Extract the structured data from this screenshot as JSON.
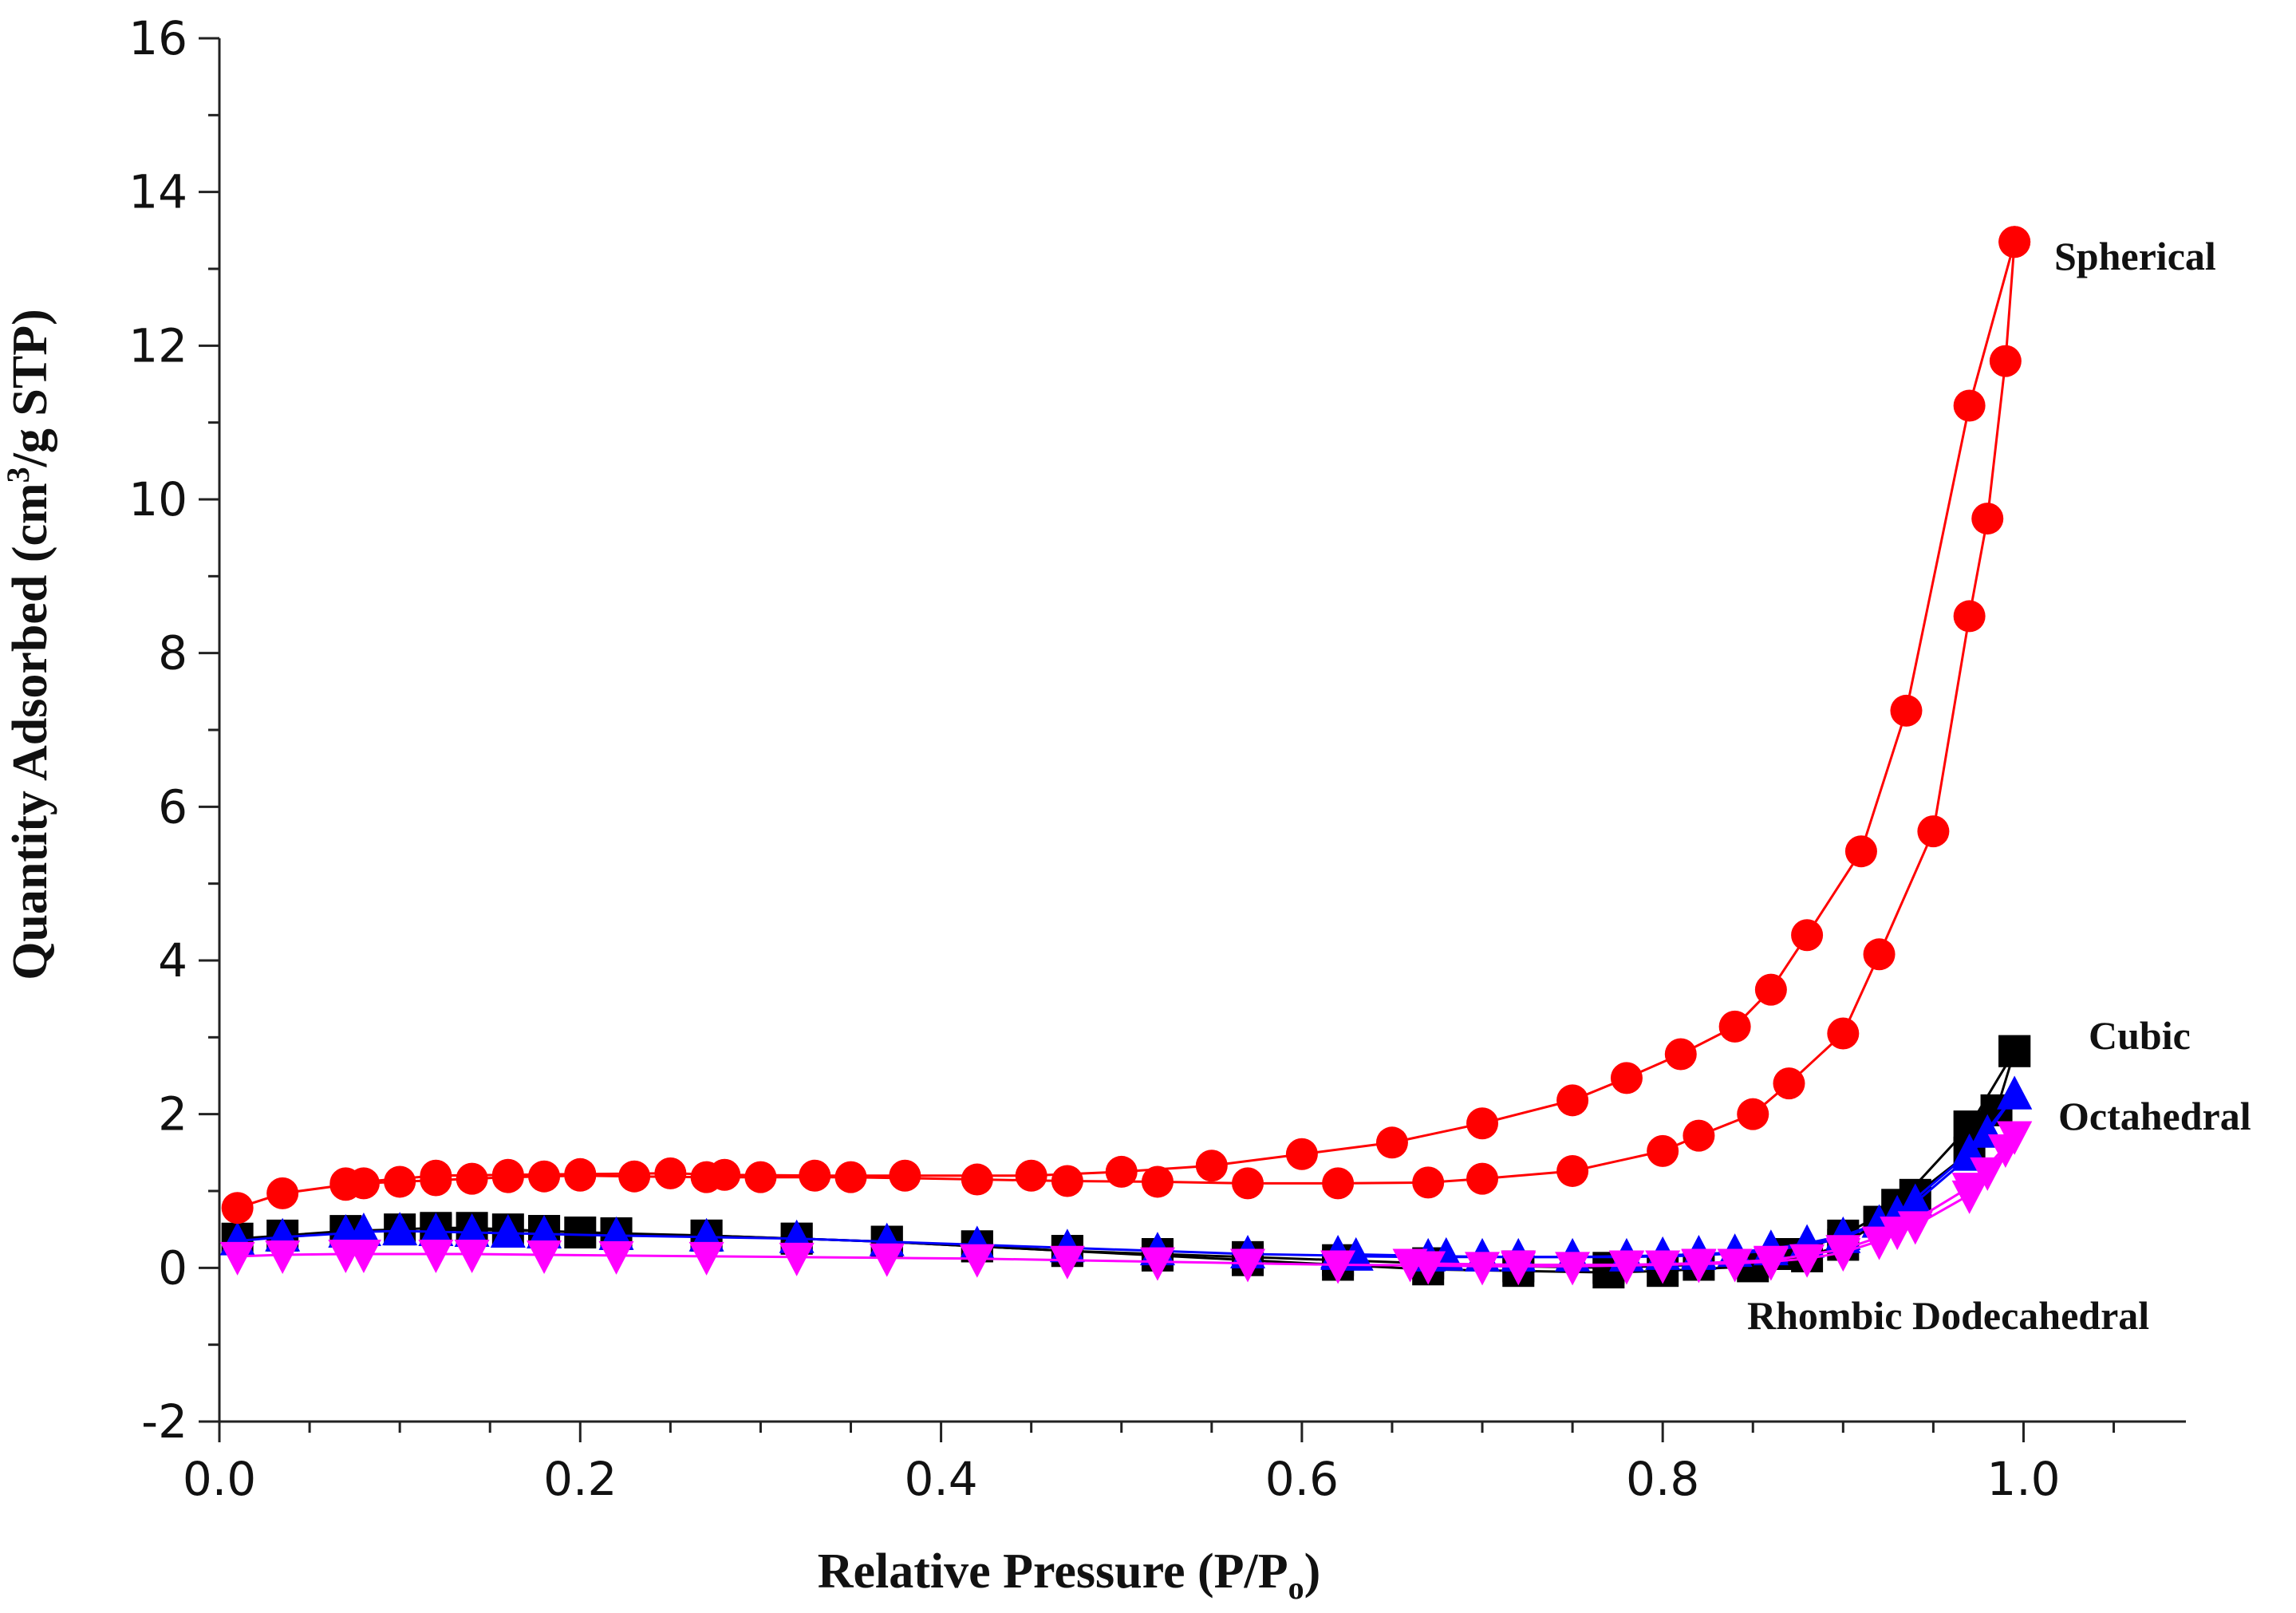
{
  "chart_data": {
    "type": "scatter",
    "title": "",
    "xlabel": "Relative Pressure (P/P",
    "xlabel_sub": "o",
    "xlabel_close": ")",
    "ylabel_prefix": "Quantity Adsorbed (cm",
    "ylabel_sup": "3",
    "ylabel_suffix": "/g  STP)",
    "xlim": [
      0.0,
      1.09
    ],
    "ylim": [
      -2,
      16
    ],
    "x_ticks": [
      "0.0",
      "0.2",
      "0.4",
      "0.6",
      "0.8",
      "1.0"
    ],
    "y_ticks": [
      "-2",
      "0",
      "2",
      "4",
      "6",
      "8",
      "10",
      "12",
      "14",
      "16"
    ],
    "legend": "none",
    "series": [
      {
        "name": "Spherical",
        "color": "#ff0000",
        "marker": "circle",
        "adsorption": [
          [
            0.01,
            0.78
          ],
          [
            0.035,
            0.97
          ],
          [
            0.07,
            1.08
          ],
          [
            0.08,
            1.1
          ],
          [
            0.1,
            1.12
          ],
          [
            0.12,
            1.14
          ],
          [
            0.14,
            1.16
          ],
          [
            0.16,
            1.18
          ],
          [
            0.18,
            1.19
          ],
          [
            0.2,
            1.2
          ],
          [
            0.23,
            1.19
          ],
          [
            0.27,
            1.18
          ],
          [
            0.3,
            1.18
          ],
          [
            0.35,
            1.18
          ],
          [
            0.42,
            1.15
          ],
          [
            0.47,
            1.13
          ],
          [
            0.52,
            1.12
          ],
          [
            0.57,
            1.1
          ],
          [
            0.62,
            1.1
          ],
          [
            0.67,
            1.11
          ],
          [
            0.7,
            1.16
          ],
          [
            0.75,
            1.26
          ],
          [
            0.8,
            1.52
          ],
          [
            0.82,
            1.72
          ],
          [
            0.85,
            2.0
          ],
          [
            0.87,
            2.4
          ],
          [
            0.9,
            3.05
          ],
          [
            0.92,
            4.08
          ],
          [
            0.95,
            5.68
          ],
          [
            0.97,
            8.48
          ],
          [
            0.98,
            9.75
          ],
          [
            0.99,
            11.8
          ],
          [
            0.995,
            13.35
          ]
        ],
        "desorption": [
          [
            0.995,
            13.35
          ],
          [
            0.97,
            11.22
          ],
          [
            0.935,
            7.25
          ],
          [
            0.91,
            5.42
          ],
          [
            0.88,
            4.33
          ],
          [
            0.86,
            3.62
          ],
          [
            0.84,
            3.14
          ],
          [
            0.81,
            2.78
          ],
          [
            0.78,
            2.47
          ],
          [
            0.75,
            2.18
          ],
          [
            0.7,
            1.88
          ],
          [
            0.65,
            1.63
          ],
          [
            0.6,
            1.48
          ],
          [
            0.55,
            1.33
          ],
          [
            0.5,
            1.25
          ],
          [
            0.45,
            1.2
          ],
          [
            0.38,
            1.2
          ],
          [
            0.33,
            1.2
          ],
          [
            0.28,
            1.21
          ],
          [
            0.25,
            1.23
          ],
          [
            0.2,
            1.22
          ],
          [
            0.16,
            1.21
          ],
          [
            0.12,
            1.2
          ],
          [
            0.07,
            1.1
          ]
        ],
        "label": "Spherical"
      },
      {
        "name": "Cubic",
        "color": "#000000",
        "marker": "square",
        "adsorption": [
          [
            0.01,
            0.38
          ],
          [
            0.035,
            0.42
          ],
          [
            0.07,
            0.48
          ],
          [
            0.1,
            0.5
          ],
          [
            0.12,
            0.52
          ],
          [
            0.14,
            0.52
          ],
          [
            0.16,
            0.5
          ],
          [
            0.18,
            0.48
          ],
          [
            0.2,
            0.46
          ],
          [
            0.22,
            0.44
          ],
          [
            0.27,
            0.42
          ],
          [
            0.32,
            0.38
          ],
          [
            0.37,
            0.34
          ],
          [
            0.42,
            0.28
          ],
          [
            0.47,
            0.22
          ],
          [
            0.52,
            0.16
          ],
          [
            0.57,
            0.1
          ],
          [
            0.62,
            0.04
          ],
          [
            0.67,
            -0.02
          ],
          [
            0.72,
            -0.04
          ],
          [
            0.77,
            -0.06
          ],
          [
            0.8,
            -0.04
          ],
          [
            0.85,
            0.02
          ],
          [
            0.88,
            0.15
          ],
          [
            0.9,
            0.3
          ],
          [
            0.92,
            0.6
          ],
          [
            0.94,
            0.95
          ],
          [
            0.97,
            1.5
          ],
          [
            0.985,
            2.05
          ],
          [
            0.995,
            2.82
          ]
        ],
        "desorption": [
          [
            0.995,
            2.82
          ],
          [
            0.97,
            1.84
          ],
          [
            0.93,
            0.82
          ],
          [
            0.9,
            0.42
          ],
          [
            0.87,
            0.18
          ],
          [
            0.82,
            0.04
          ],
          [
            0.77,
            0.0
          ],
          [
            0.72,
            0.02
          ],
          [
            0.67,
            0.06
          ],
          [
            0.62,
            0.1
          ],
          [
            0.57,
            0.14
          ],
          [
            0.52,
            0.18
          ],
          [
            0.47,
            0.22
          ],
          [
            0.42,
            0.28
          ],
          [
            0.37,
            0.34
          ],
          [
            0.32,
            0.38
          ],
          [
            0.27,
            0.42
          ],
          [
            0.22,
            0.45
          ],
          [
            0.18,
            0.48
          ],
          [
            0.12,
            0.5
          ]
        ],
        "label": "Cubic"
      },
      {
        "name": "Octahedral",
        "color": "#0000ff",
        "marker": "triangle-up",
        "adsorption": [
          [
            0.01,
            0.35
          ],
          [
            0.035,
            0.4
          ],
          [
            0.07,
            0.45
          ],
          [
            0.08,
            0.47
          ],
          [
            0.1,
            0.48
          ],
          [
            0.12,
            0.47
          ],
          [
            0.14,
            0.46
          ],
          [
            0.16,
            0.45
          ],
          [
            0.18,
            0.44
          ],
          [
            0.22,
            0.42
          ],
          [
            0.27,
            0.4
          ],
          [
            0.32,
            0.38
          ],
          [
            0.37,
            0.34
          ],
          [
            0.42,
            0.3
          ],
          [
            0.47,
            0.26
          ],
          [
            0.52,
            0.22
          ],
          [
            0.57,
            0.18
          ],
          [
            0.62,
            0.16
          ],
          [
            0.63,
            0.15
          ],
          [
            0.67,
            0.14
          ],
          [
            0.7,
            0.14
          ],
          [
            0.75,
            0.14
          ],
          [
            0.8,
            0.16
          ],
          [
            0.82,
            0.18
          ],
          [
            0.84,
            0.2
          ],
          [
            0.86,
            0.25
          ],
          [
            0.88,
            0.32
          ],
          [
            0.9,
            0.42
          ],
          [
            0.92,
            0.58
          ],
          [
            0.94,
            0.85
          ],
          [
            0.97,
            1.45
          ],
          [
            0.98,
            1.75
          ],
          [
            0.995,
            2.25
          ]
        ],
        "desorption": [
          [
            0.995,
            2.25
          ],
          [
            0.97,
            1.5
          ],
          [
            0.93,
            0.7
          ],
          [
            0.9,
            0.38
          ],
          [
            0.86,
            0.22
          ],
          [
            0.82,
            0.16
          ],
          [
            0.78,
            0.14
          ],
          [
            0.72,
            0.14
          ],
          [
            0.68,
            0.15
          ],
          [
            0.62,
            0.18
          ]
        ],
        "label": "Octahedral"
      },
      {
        "name": "Rhombic Dodecahedral",
        "color": "#ff00ff",
        "marker": "triangle-down",
        "adsorption": [
          [
            0.01,
            0.15
          ],
          [
            0.035,
            0.17
          ],
          [
            0.07,
            0.18
          ],
          [
            0.08,
            0.18
          ],
          [
            0.12,
            0.18
          ],
          [
            0.14,
            0.18
          ],
          [
            0.18,
            0.17
          ],
          [
            0.22,
            0.16
          ],
          [
            0.27,
            0.15
          ],
          [
            0.32,
            0.14
          ],
          [
            0.37,
            0.13
          ],
          [
            0.42,
            0.12
          ],
          [
            0.47,
            0.1
          ],
          [
            0.52,
            0.08
          ],
          [
            0.57,
            0.06
          ],
          [
            0.62,
            0.04
          ],
          [
            0.67,
            0.03
          ],
          [
            0.7,
            0.02
          ],
          [
            0.72,
            0.02
          ],
          [
            0.75,
            0.02
          ],
          [
            0.78,
            0.03
          ],
          [
            0.8,
            0.04
          ],
          [
            0.82,
            0.05
          ],
          [
            0.84,
            0.06
          ],
          [
            0.86,
            0.08
          ],
          [
            0.88,
            0.12
          ],
          [
            0.9,
            0.2
          ],
          [
            0.92,
            0.35
          ],
          [
            0.94,
            0.55
          ],
          [
            0.97,
            0.95
          ],
          [
            0.98,
            1.25
          ],
          [
            0.99,
            1.55
          ],
          [
            0.995,
            1.72
          ]
        ],
        "desorption": [
          [
            0.995,
            1.72
          ],
          [
            0.97,
            1.05
          ],
          [
            0.93,
            0.48
          ],
          [
            0.9,
            0.24
          ],
          [
            0.86,
            0.1
          ],
          [
            0.82,
            0.06
          ],
          [
            0.78,
            0.04
          ],
          [
            0.72,
            0.04
          ],
          [
            0.66,
            0.06
          ]
        ],
        "label": "Rhombic Dodecahedral"
      }
    ]
  }
}
